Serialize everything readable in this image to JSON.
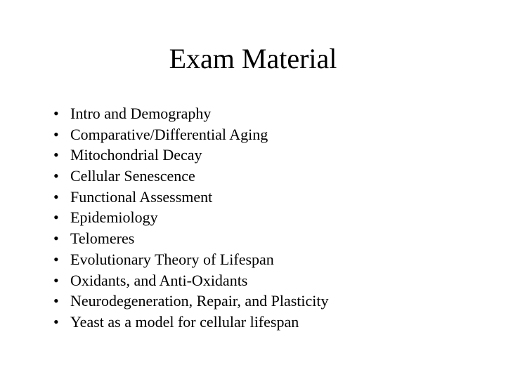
{
  "slide": {
    "title": "Exam Material",
    "title_fontsize": 40,
    "body_fontsize": 22,
    "font_family": "Times New Roman",
    "background_color": "#ffffff",
    "text_color": "#000000",
    "bullets": [
      "Intro and Demography",
      "Comparative/Differential Aging",
      "Mitochondrial Decay",
      "Cellular Senescence",
      "Functional Assessment",
      "Epidemiology",
      "Telomeres",
      "Evolutionary Theory of Lifespan",
      " Oxidants, and Anti-Oxidants",
      "Neurodegeneration, Repair, and Plasticity",
      "Yeast as a model for cellular lifespan"
    ]
  }
}
